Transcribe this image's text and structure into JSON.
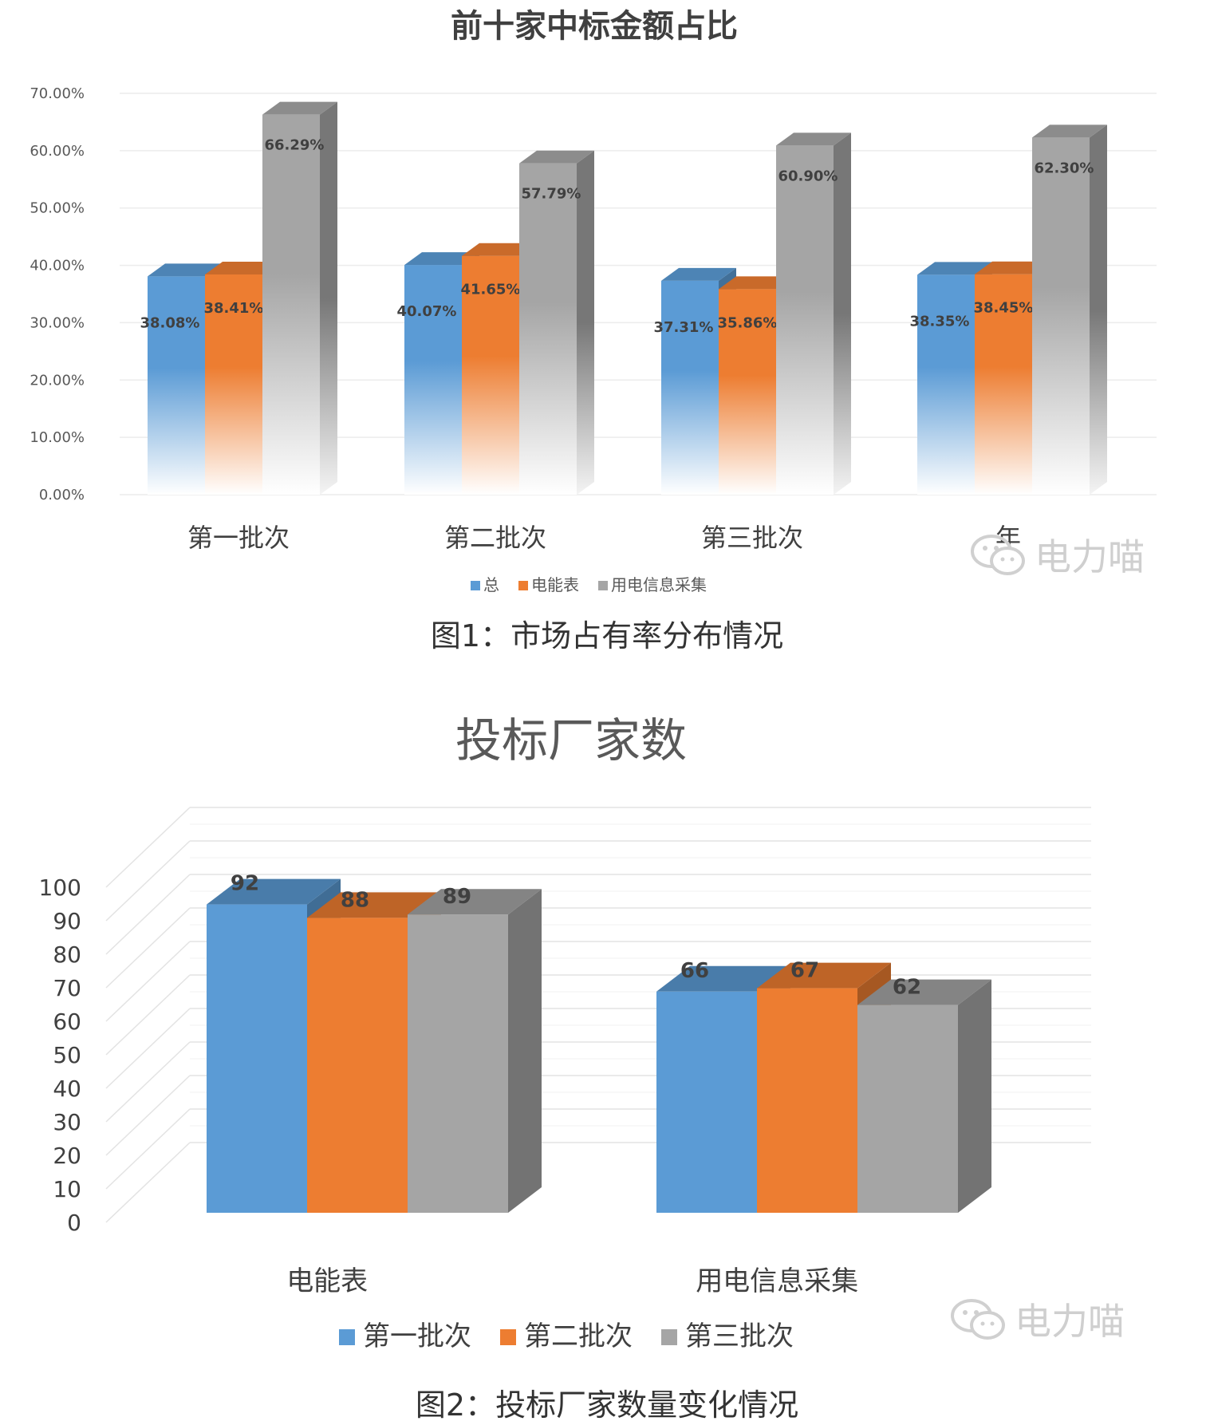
{
  "chart_data": [
    {
      "type": "bar",
      "title": "前十家中标金额占比",
      "categories": [
        "第一批次",
        "第二批次",
        "第三批次",
        "年"
      ],
      "series": [
        {
          "name": "总",
          "values": [
            38.08,
            40.07,
            37.31,
            38.35
          ],
          "labels": [
            "38.08%",
            "40.07%",
            "37.31%",
            "38.35%"
          ]
        },
        {
          "name": "电能表",
          "values": [
            38.41,
            41.65,
            35.86,
            38.45
          ],
          "labels": [
            "38.41%",
            "41.65%",
            "35.86%",
            "38.45%"
          ]
        },
        {
          "name": "用电信息采集",
          "values": [
            66.29,
            57.79,
            60.9,
            62.3
          ],
          "labels": [
            "66.29%",
            "57.79%",
            "60.90%",
            "62.30%"
          ]
        }
      ],
      "ylim": [
        0,
        70
      ],
      "yticks": [
        "0.00%",
        "10.00%",
        "20.00%",
        "30.00%",
        "40.00%",
        "50.00%",
        "60.00%",
        "70.00%"
      ],
      "grid": true,
      "legend": "bottom"
    },
    {
      "type": "bar",
      "title": "投标厂家数",
      "categories": [
        "电能表",
        "用电信息采集"
      ],
      "series": [
        {
          "name": "第一批次",
          "values": [
            92,
            66
          ]
        },
        {
          "name": "第二批次",
          "values": [
            88,
            67
          ]
        },
        {
          "name": "第三批次",
          "values": [
            89,
            62
          ]
        }
      ],
      "ylim": [
        0,
        100
      ],
      "yticks": [
        "0",
        "10",
        "20",
        "30",
        "40",
        "50",
        "60",
        "70",
        "80",
        "90",
        "100"
      ],
      "grid": true,
      "legend": "bottom"
    }
  ],
  "colors": {
    "blue": "#5b9bd5",
    "orange": "#ed7d31",
    "gray": "#a5a5a5"
  },
  "captions": {
    "fig1": "图1：市场占有率分布情况",
    "fig2": "图2：投标厂家数量变化情况"
  },
  "watermark": "电力喵",
  "icons": {
    "watermark": "wechat-icon"
  }
}
